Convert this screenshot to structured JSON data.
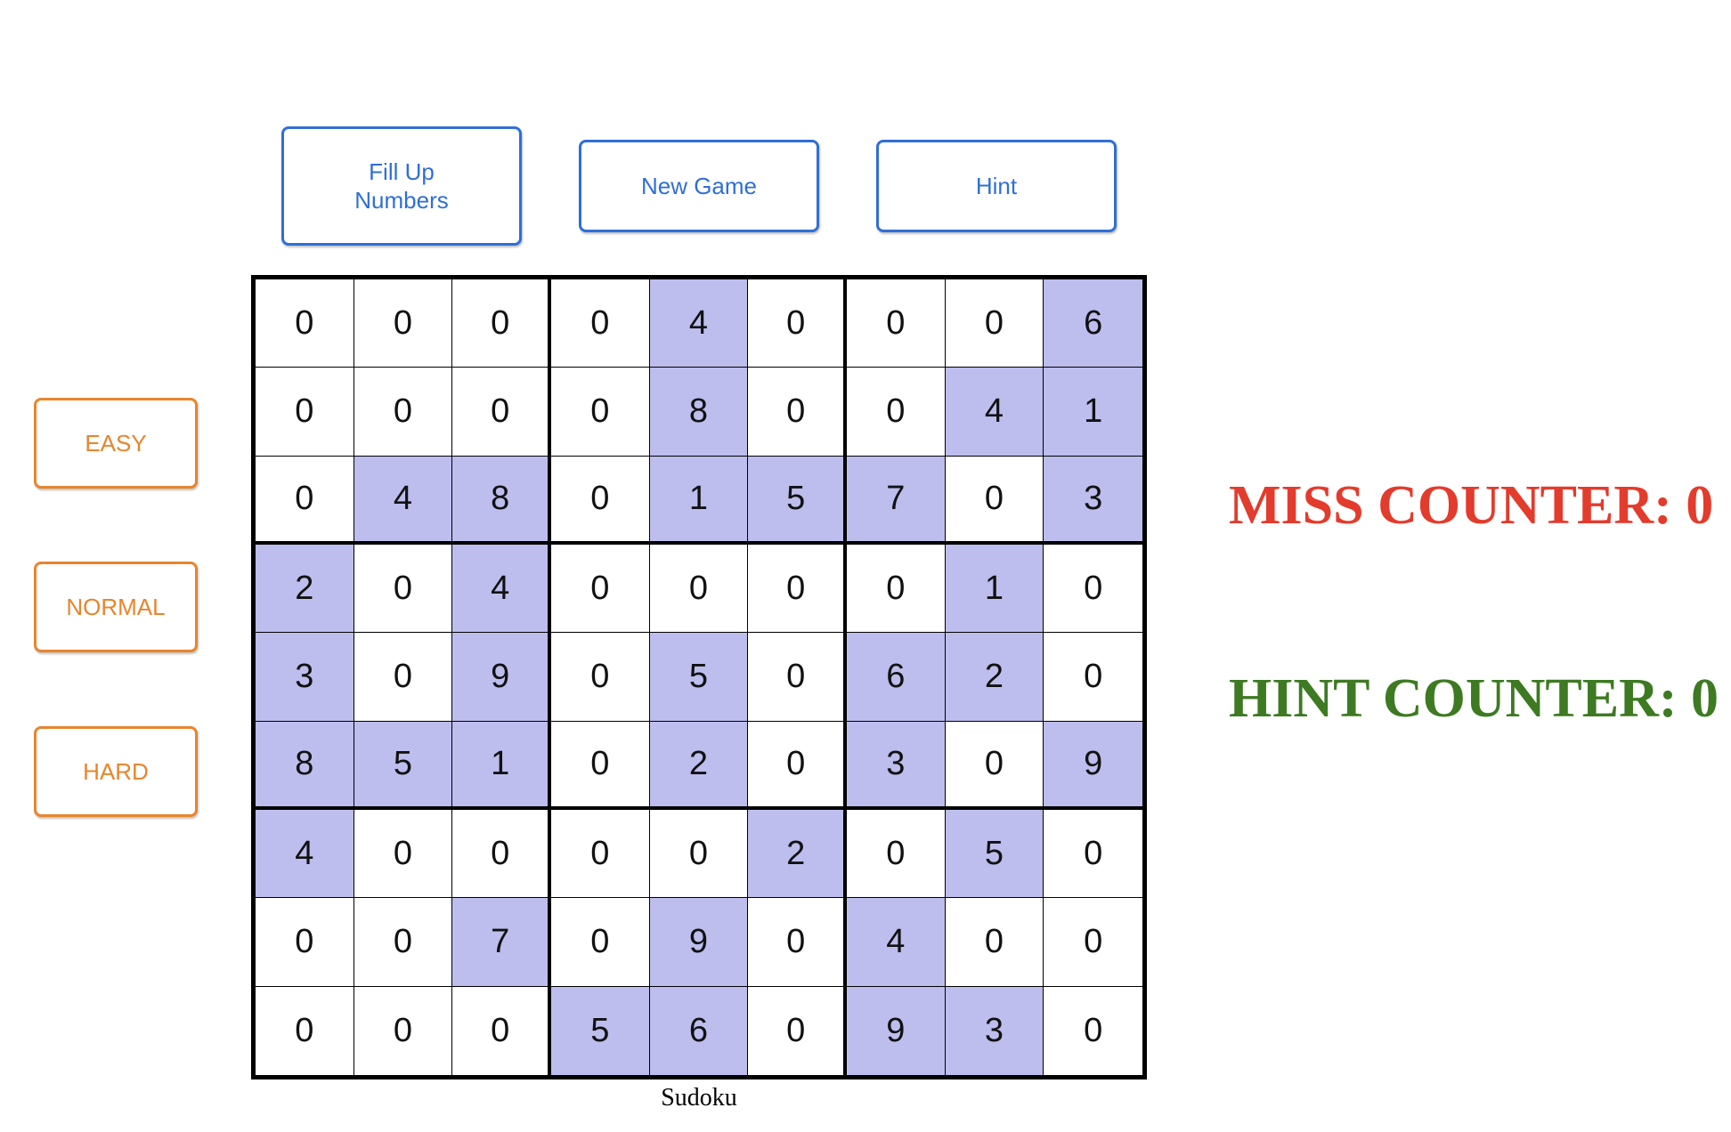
{
  "colors": {
    "primary_button": "#2f6fd6",
    "difficulty_button": "#e8852d",
    "given_cell": "#bdbdee",
    "miss_counter": "#e33b2c",
    "hint_counter": "#3d7a22"
  },
  "toolbar": {
    "fill_label": "Fill Up Numbers",
    "new_game_label": "New Game",
    "hint_label": "Hint"
  },
  "difficulty": {
    "easy_label": "EASY",
    "normal_label": "NORMAL",
    "hard_label": "HARD"
  },
  "board": {
    "caption": "Sudoku",
    "rows": [
      [
        0,
        0,
        0,
        0,
        4,
        0,
        0,
        0,
        6
      ],
      [
        0,
        0,
        0,
        0,
        8,
        0,
        0,
        4,
        1
      ],
      [
        0,
        4,
        8,
        0,
        1,
        5,
        7,
        0,
        3
      ],
      [
        2,
        0,
        4,
        0,
        0,
        0,
        0,
        1,
        0
      ],
      [
        3,
        0,
        9,
        0,
        5,
        0,
        6,
        2,
        0
      ],
      [
        8,
        5,
        1,
        0,
        2,
        0,
        3,
        0,
        9
      ],
      [
        4,
        0,
        0,
        0,
        0,
        2,
        0,
        5,
        0
      ],
      [
        0,
        0,
        7,
        0,
        9,
        0,
        4,
        0,
        0
      ],
      [
        0,
        0,
        0,
        5,
        6,
        0,
        9,
        3,
        0
      ]
    ]
  },
  "counters": {
    "miss_text": "MISS COUNTER: 0",
    "hint_text": "HINT COUNTER: 0"
  }
}
